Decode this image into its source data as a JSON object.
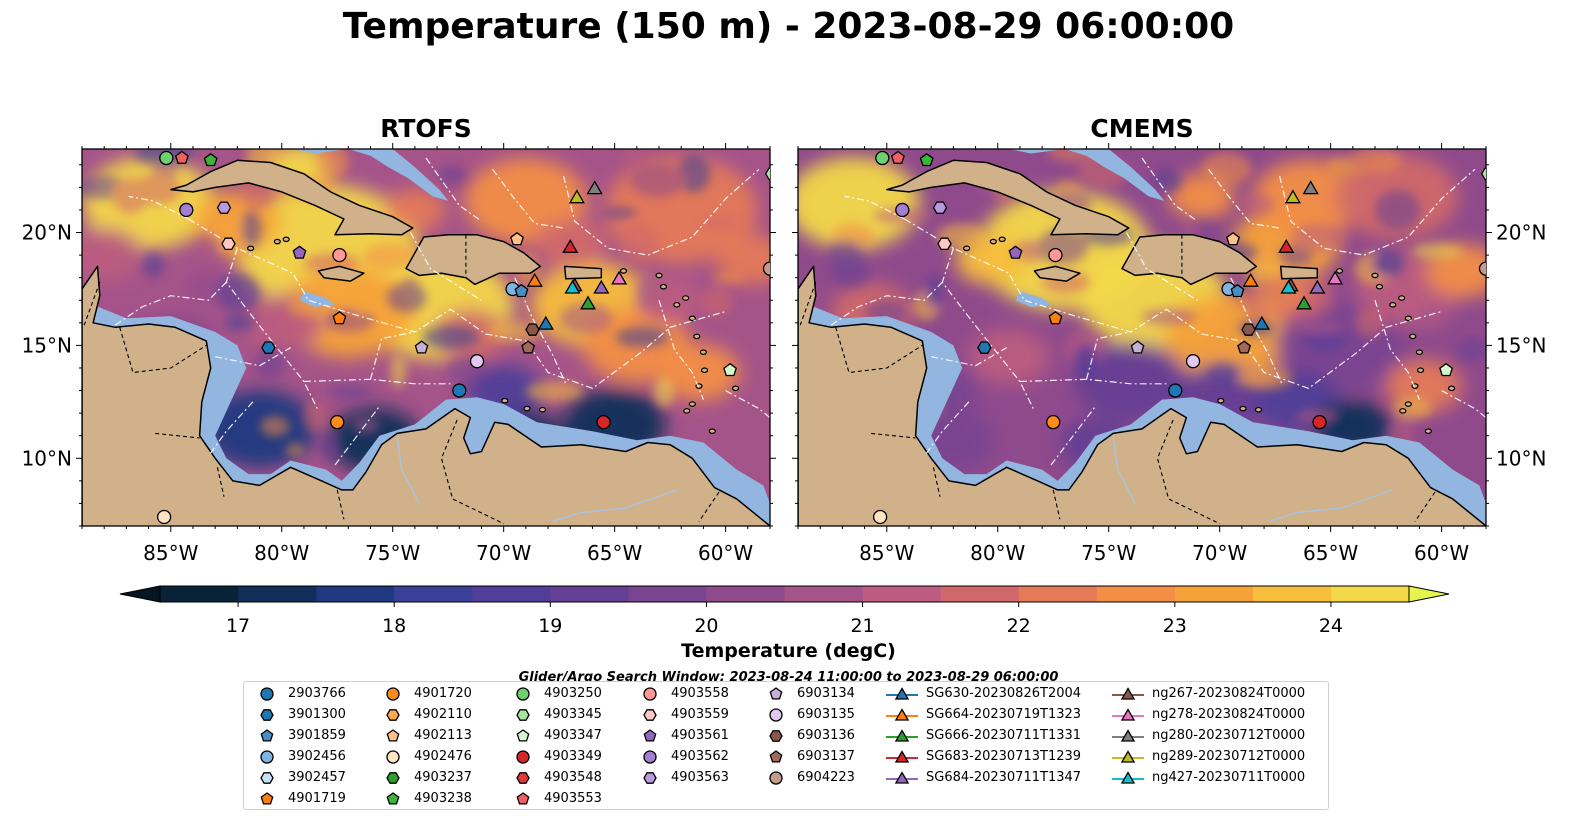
{
  "title": "Temperature (150 m) - 2023-08-29 06:00:00",
  "panels": [
    {
      "title": "RTOFS"
    },
    {
      "title": "CMEMS"
    }
  ],
  "axes": {
    "lon_range": [
      -89,
      -58
    ],
    "lat_range": [
      7,
      23.7
    ],
    "lon_ticks": [
      "85°W",
      "80°W",
      "75°W",
      "70°W",
      "65°W",
      "60°W"
    ],
    "lon_tick_values": [
      -85,
      -80,
      -75,
      -70,
      -65,
      -60
    ],
    "lat_ticks": [
      "20°N",
      "15°N",
      "10°N"
    ],
    "lat_tick_values": [
      20,
      15,
      10
    ]
  },
  "colorbar": {
    "label": "Temperature (degC)",
    "range": [
      16.5,
      24.5
    ],
    "step": 0.5,
    "ticks": [
      "17",
      "18",
      "19",
      "20",
      "21",
      "22",
      "23",
      "24"
    ],
    "tick_values": [
      17,
      18,
      19,
      20,
      21,
      22,
      23,
      24
    ],
    "colors": [
      "#0a2238",
      "#112e58",
      "#1f3880",
      "#3a3f98",
      "#503e98",
      "#653f94",
      "#7a4590",
      "#8f4a8c",
      "#a5548a",
      "#bb5c80",
      "#d0686a",
      "#e47a58",
      "#f28e46",
      "#f6a23a",
      "#f7bd3c",
      "#f3d84a"
    ],
    "low_color": "#051522",
    "high_color": "#e8f44e"
  },
  "search_window": "Glider/Argo Search Window: 2023-08-24 11:00:00 to 2023-08-29 06:00:00",
  "map_colors": {
    "land": "#d0b18a",
    "shelf": "#92b6e0",
    "coast": "#000000"
  },
  "legend": [
    {
      "label": "2903766",
      "color": "#1f77b4",
      "marker": "circle"
    },
    {
      "label": "3901300",
      "color": "#1f77b4",
      "marker": "hexagon"
    },
    {
      "label": "3901859",
      "color": "#4a8fc4",
      "marker": "pentagon"
    },
    {
      "label": "3902456",
      "color": "#7fb4e2",
      "marker": "circle"
    },
    {
      "label": "3902457",
      "color": "#c4e2f2",
      "marker": "hexagon"
    },
    {
      "label": "4901719",
      "color": "#ff7f0e",
      "marker": "pentagon"
    },
    {
      "label": "4901720",
      "color": "#ff8c1a",
      "marker": "circle"
    },
    {
      "label": "4902110",
      "color": "#ffa850",
      "marker": "hexagon"
    },
    {
      "label": "4902113",
      "color": "#ffc08a",
      "marker": "pentagon"
    },
    {
      "label": "4902476",
      "color": "#ffe4c4",
      "marker": "circle"
    },
    {
      "label": "4903237",
      "color": "#2ca02c",
      "marker": "hexagon"
    },
    {
      "label": "4903238",
      "color": "#3cb53c",
      "marker": "pentagon"
    },
    {
      "label": "4903250",
      "color": "#6fd06f",
      "marker": "circle"
    },
    {
      "label": "4903345",
      "color": "#a8e6a0",
      "marker": "hexagon"
    },
    {
      "label": "4903347",
      "color": "#d4f7cc",
      "marker": "pentagon"
    },
    {
      "label": "4903349",
      "color": "#d62728",
      "marker": "circle"
    },
    {
      "label": "4903548",
      "color": "#e03a3a",
      "marker": "hexagon"
    },
    {
      "label": "4903553",
      "color": "#f06060",
      "marker": "pentagon"
    },
    {
      "label": "4903558",
      "color": "#ff9896",
      "marker": "circle"
    },
    {
      "label": "4903559",
      "color": "#ffc8c6",
      "marker": "hexagon"
    },
    {
      "label": "4903561",
      "color": "#9467bd",
      "marker": "pentagon"
    },
    {
      "label": "4903562",
      "color": "#a47ed0",
      "marker": "circle"
    },
    {
      "label": "4903563",
      "color": "#b89ade",
      "marker": "hexagon"
    },
    {
      "label": "6903134",
      "color": "#c5b0d5",
      "marker": "pentagon"
    },
    {
      "label": "6903135",
      "color": "#e0c8f0",
      "marker": "circle"
    },
    {
      "label": "6903136",
      "color": "#8c564b",
      "marker": "hexagon"
    },
    {
      "label": "6903137",
      "color": "#a0695c",
      "marker": "pentagon"
    },
    {
      "label": "6904223",
      "color": "#c49c8c",
      "marker": "circle"
    },
    {
      "label": "SG630-20230826T2004",
      "color": "#1f77b4",
      "marker": "triangle"
    },
    {
      "label": "SG664-20230719T1323",
      "color": "#ff7f0e",
      "marker": "triangle"
    },
    {
      "label": "SG666-20230711T1331",
      "color": "#2ca02c",
      "marker": "triangle"
    },
    {
      "label": "SG683-20230713T1239",
      "color": "#d62728",
      "marker": "triangle"
    },
    {
      "label": "SG684-20230711T1347",
      "color": "#9467bd",
      "marker": "triangle"
    },
    {
      "label": "ng267-20230824T0000",
      "color": "#8c564b",
      "marker": "triangle"
    },
    {
      "label": "ng278-20230824T0000",
      "color": "#e377c2",
      "marker": "triangle"
    },
    {
      "label": "ng280-20230712T0000",
      "color": "#7f7f7f",
      "marker": "triangle"
    },
    {
      "label": "ng289-20230712T0000",
      "color": "#bcbd22",
      "marker": "triangle"
    },
    {
      "label": "ng427-20230711T0000",
      "color": "#17becf",
      "marker": "triangle"
    }
  ],
  "floats": [
    {
      "label": "4903250",
      "lon": -85.2,
      "lat": 23.3
    },
    {
      "label": "4903553",
      "lon": -84.5,
      "lat": 23.3
    },
    {
      "label": "4903238",
      "lon": -83.2,
      "lat": 23.2
    },
    {
      "label": "4903562",
      "lon": -84.3,
      "lat": 21.0
    },
    {
      "label": "4903563",
      "lon": -82.6,
      "lat": 21.1
    },
    {
      "label": "4903559",
      "lon": -82.4,
      "lat": 19.5
    },
    {
      "label": "4903561",
      "lon": -79.2,
      "lat": 19.1
    },
    {
      "label": "4903558",
      "lon": -77.4,
      "lat": 19.0
    },
    {
      "label": "4902113",
      "lon": -69.4,
      "lat": 19.7
    },
    {
      "label": "3902456",
      "lon": -69.6,
      "lat": 17.5
    },
    {
      "label": "3901859",
      "lon": -69.2,
      "lat": 17.4
    },
    {
      "label": "4901719",
      "lon": -77.4,
      "lat": 16.2
    },
    {
      "label": "3901300",
      "lon": -80.6,
      "lat": 14.9
    },
    {
      "label": "6903134",
      "lon": -73.7,
      "lat": 14.9
    },
    {
      "label": "6903135",
      "lon": -71.2,
      "lat": 14.3
    },
    {
      "label": "2903766",
      "lon": -72.0,
      "lat": 13.0
    },
    {
      "label": "6903136",
      "lon": -68.7,
      "lat": 15.7
    },
    {
      "label": "6903137",
      "lon": -68.9,
      "lat": 14.9
    },
    {
      "label": "4901720",
      "lon": -77.5,
      "lat": 11.6
    },
    {
      "label": "4903349",
      "lon": -65.5,
      "lat": 11.6
    },
    {
      "label": "4903347",
      "lon": -59.8,
      "lat": 13.9
    },
    {
      "label": "6904223",
      "lon": -58.0,
      "lat": 18.4
    },
    {
      "label": "4902476",
      "lon": -85.3,
      "lat": 7.4
    },
    {
      "label": "4903345",
      "lon": -57.9,
      "lat": 22.6
    }
  ],
  "gliders": [
    {
      "label": "ng289-20230712T0000",
      "lon": -66.7,
      "lat": 21.5
    },
    {
      "label": "ng280-20230712T0000",
      "lon": -65.9,
      "lat": 21.9
    },
    {
      "label": "SG683-20230713T1239",
      "lon": -67.0,
      "lat": 19.3
    },
    {
      "label": "SG664-20230719T1323",
      "lon": -68.6,
      "lat": 17.8
    },
    {
      "label": "ng267-20230824T0000",
      "lon": -66.8,
      "lat": 17.6
    },
    {
      "label": "ng427-20230711T0000",
      "lon": -66.9,
      "lat": 17.5
    },
    {
      "label": "SG684-20230711T1347",
      "lon": -65.6,
      "lat": 17.5
    },
    {
      "label": "ng278-20230824T0000",
      "lon": -64.8,
      "lat": 17.9
    },
    {
      "label": "SG666-20230711T1331",
      "lon": -66.2,
      "lat": 16.8
    },
    {
      "label": "SG630-20230826T2004",
      "lon": -68.1,
      "lat": 15.9
    }
  ]
}
